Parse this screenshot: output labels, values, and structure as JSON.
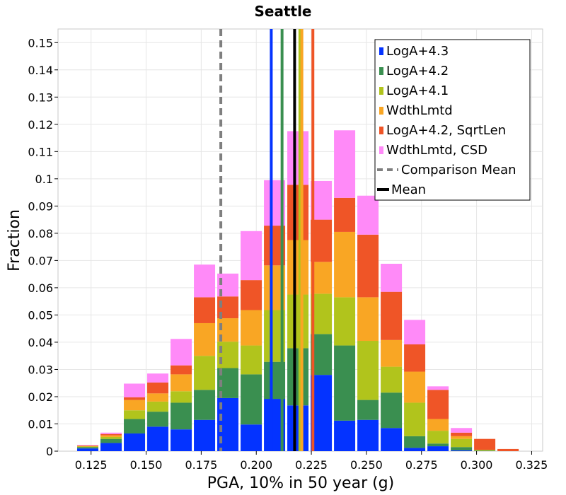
{
  "chart_data": {
    "type": "bar",
    "subtype": "stacked-histogram",
    "title": "Seattle",
    "xlabel": "PGA, 10% in 50 year (g)",
    "ylabel": "Fraction",
    "xlim": [
      0.11,
      0.33
    ],
    "ylim": [
      0,
      0.155
    ],
    "x_ticks": [
      0.125,
      0.15,
      0.175,
      0.2,
      0.225,
      0.25,
      0.275,
      0.3,
      0.325
    ],
    "x_tick_labels": [
      "0.125",
      "0.150",
      "0.175",
      "0.200",
      "0.225",
      "0.250",
      "0.275",
      "0.300",
      "0.325"
    ],
    "y_ticks": [
      0,
      0.01,
      0.02,
      0.03,
      0.04,
      0.05,
      0.06,
      0.07,
      0.08,
      0.09,
      0.1,
      0.11,
      0.12,
      0.13,
      0.14,
      0.15
    ],
    "y_tick_labels": [
      "0",
      "0.01",
      "0.02",
      "0.03",
      "0.04",
      "0.05",
      "0.06",
      "0.07",
      "0.08",
      "0.09",
      "0.1",
      "0.11",
      "0.12",
      "0.13",
      "0.14",
      "0.15"
    ],
    "bin_width": 0.0106,
    "bin_centers": [
      0.1235,
      0.1341,
      0.1447,
      0.1553,
      0.1659,
      0.1765,
      0.1871,
      0.1977,
      0.2083,
      0.2189,
      0.2295,
      0.2401,
      0.2507,
      0.2613,
      0.2719,
      0.2825,
      0.2931,
      0.3037,
      0.3143
    ],
    "cumulative_tops": {
      "LogA+4.3": [
        0.001,
        0.003,
        0.0065,
        0.009,
        0.008,
        0.0115,
        0.0195,
        0.0098,
        0.0192,
        0.0168,
        0.028,
        0.0112,
        0.0115,
        0.0085,
        0.0012,
        0.0018,
        0.0003,
        0.0,
        0.0
      ],
      "LogA+4.2": [
        0.0015,
        0.0045,
        0.0118,
        0.0145,
        0.0178,
        0.0225,
        0.0305,
        0.0282,
        0.0328,
        0.0378,
        0.043,
        0.0388,
        0.0188,
        0.0215,
        0.0055,
        0.0028,
        0.0015,
        0.0002,
        0.0
      ],
      "LogA+4.1": [
        0.0017,
        0.0052,
        0.015,
        0.0182,
        0.022,
        0.035,
        0.0402,
        0.0388,
        0.0518,
        0.0575,
        0.0578,
        0.0565,
        0.0405,
        0.031,
        0.0178,
        0.0075,
        0.0045,
        0.0005,
        0.0
      ],
      "WdthLmtd": [
        0.0019,
        0.0058,
        0.0188,
        0.0212,
        0.0282,
        0.047,
        0.0488,
        0.0518,
        0.0682,
        0.0775,
        0.0695,
        0.0805,
        0.0565,
        0.0408,
        0.0292,
        0.0118,
        0.0055,
        0.0005,
        0.0
      ],
      "LogA+4.2, SqrtLen": [
        0.0021,
        0.0063,
        0.0198,
        0.0252,
        0.0315,
        0.0565,
        0.0568,
        0.0628,
        0.0828,
        0.0978,
        0.085,
        0.093,
        0.0795,
        0.0585,
        0.0392,
        0.0225,
        0.0068,
        0.0045,
        0.0008
      ],
      "WdthLmtd, CSD": [
        0.0023,
        0.0068,
        0.0248,
        0.0285,
        0.0412,
        0.0685,
        0.0652,
        0.0808,
        0.0995,
        0.1175,
        0.0992,
        0.1178,
        0.0938,
        0.0688,
        0.0482,
        0.0238,
        0.0085,
        0.0045,
        0.0008
      ]
    },
    "series": [
      {
        "name": "LogA+4.3",
        "color": "#0433ff",
        "mean": 0.2068
      },
      {
        "name": "LogA+4.2",
        "color": "#3a8f50",
        "mean": 0.2117
      },
      {
        "name": "LogA+4.1",
        "color": "#b1c41c",
        "mean": 0.2198
      },
      {
        "name": "WdthLmtd",
        "color": "#f9a624",
        "mean": 0.2207
      },
      {
        "name": "LogA+4.2, SqrtLen",
        "color": "#ef5527",
        "mean": 0.2257
      },
      {
        "name": "WdthLmtd, CSD",
        "color": "#ff8af8",
        "mean": null
      }
    ],
    "mean_lines": {
      "comparison_mean": {
        "label": "Comparison Mean",
        "value": 0.1839,
        "color": "#7f7f7f",
        "style": "dashed"
      },
      "mean": {
        "label": "Mean",
        "value": 0.2174,
        "color": "#000000",
        "style": "solid"
      }
    },
    "legend_position": "top-right",
    "grid": true
  }
}
